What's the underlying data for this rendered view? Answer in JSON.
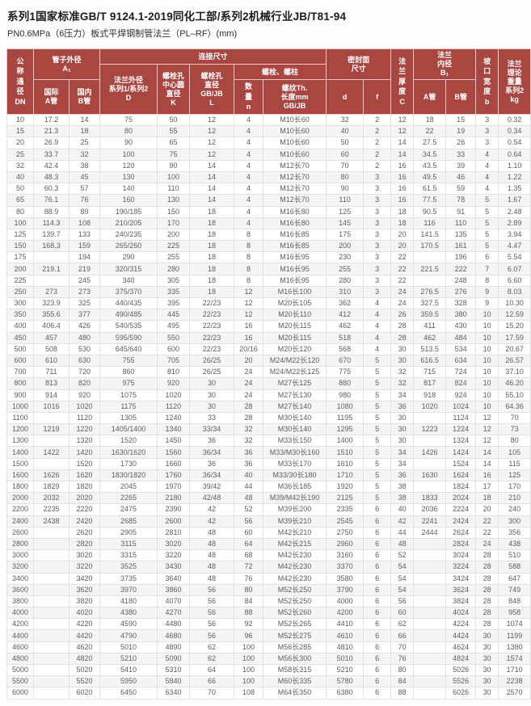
{
  "title": "系列1国家标准GB/T 9124.1-2019同化工部/系列2机械行业JB/T81-94",
  "subtitle": "PN0.6MPa（6压力）板式平焊钢制管法兰（PL–RF）(mm)",
  "colors": {
    "header_bg": "#a84642",
    "header_text": "#ffffff",
    "body_text": "#5d5d5d"
  },
  "table": {
    "header": {
      "dn": "公\n称\n通\n径\nDN",
      "pipe_od": "管子外径\nA₁",
      "intl_a": "国际\nA管",
      "domestic_b": "国内\nB管",
      "connect": "连接尺寸",
      "flange_od": "法兰外径\n系列1/系列2\nD",
      "bolt_circle": "螺栓孔\n中心圆\n直径\nK",
      "bolt_hole": "螺栓孔\n直径\nGB/JB\nL",
      "bolts_group": "螺栓、螺柱",
      "bolt_qty": "数\n量\nn",
      "bolt_thread": "螺纹Th.\n长度mm\nGB/JB",
      "seal_face": "密封面\n尺寸",
      "seal_d": "d",
      "seal_f": "f",
      "thickness": "法\n兰\n厚\n度\nC",
      "bore": "法兰\n内径\nB₁",
      "bore_a": "A管",
      "bore_b": "B管",
      "groove": "坡\n口\n宽\n度\nb",
      "weight": "法兰\n理论\n重量\n系列2\nkg"
    },
    "rows": [
      [
        "10",
        "17.2",
        "14",
        "75",
        "50",
        "12",
        "4",
        "M10长60",
        "32",
        "2",
        "12",
        "18",
        "15",
        "3",
        "0.32"
      ],
      [
        "15",
        "21.3",
        "18",
        "80",
        "55",
        "12",
        "4",
        "M10长60",
        "40",
        "2",
        "12",
        "22",
        "19",
        "3",
        "0.34"
      ],
      [
        "20",
        "26.9",
        "25",
        "90",
        "65",
        "12",
        "4",
        "M10长60",
        "50",
        "2",
        "14",
        "27.5",
        "26",
        "3",
        "0.54"
      ],
      [
        "25",
        "33.7",
        "32",
        "100",
        "75",
        "12",
        "4",
        "M10长60",
        "60",
        "2",
        "14",
        "34.5",
        "33",
        "4",
        "0.64"
      ],
      [
        "32",
        "42.4",
        "38",
        "120",
        "90",
        "14",
        "4",
        "M12长70",
        "70",
        "2",
        "16",
        "43.5",
        "39",
        "4",
        "1.10"
      ],
      [
        "40",
        "48.3",
        "45",
        "130",
        "100",
        "14",
        "4",
        "M12长70",
        "80",
        "3",
        "16",
        "49.5",
        "46",
        "4",
        "1.22"
      ],
      [
        "50",
        "60.3",
        "57",
        "140",
        "110",
        "14",
        "4",
        "M12长70",
        "90",
        "3",
        "16",
        "61.5",
        "59",
        "4",
        "1.35"
      ],
      [
        "65",
        "76.1",
        "76",
        "160",
        "130",
        "14",
        "4",
        "M12长70",
        "110",
        "3",
        "16",
        "77.5",
        "78",
        "5",
        "1.67"
      ],
      [
        "80",
        "88.9",
        "89",
        "190/185",
        "150",
        "18",
        "4",
        "M16长80",
        "125",
        "3",
        "18",
        "90.5",
        "91",
        "5",
        "2.48"
      ],
      [
        "100",
        "114.3",
        "108",
        "210/205",
        "170",
        "18",
        "4",
        "M16长80",
        "145",
        "3",
        "18",
        "116",
        "110",
        "5",
        "2.89"
      ],
      [
        "125",
        "139.7",
        "133",
        "240/235",
        "200",
        "18",
        "8",
        "M16长85",
        "175",
        "3",
        "20",
        "141.5",
        "135",
        "5",
        "3.94"
      ],
      [
        "150",
        "168.3",
        "159",
        "265/260",
        "225",
        "18",
        "8",
        "M16长85",
        "200",
        "3",
        "20",
        "170.5",
        "161",
        "5",
        "4.47"
      ],
      [
        "175",
        "",
        "194",
        "290",
        "255",
        "18",
        "8",
        "M16长95",
        "230",
        "3",
        "22",
        "",
        "196",
        "6",
        "5.54"
      ],
      [
        "200",
        "219.1",
        "219",
        "320/315",
        "280",
        "18",
        "8",
        "M16长95",
        "255",
        "3",
        "22",
        "221.5",
        "222",
        "7",
        "6.07"
      ],
      [
        "225",
        "",
        "245",
        "340",
        "305",
        "18",
        "8",
        "M16长95",
        "280",
        "3",
        "22",
        "",
        "248",
        "8",
        "6.60"
      ],
      [
        "250",
        "273",
        "273",
        "375/370",
        "335",
        "18",
        "12",
        "M16长100",
        "310",
        "3",
        "24",
        "276.5",
        "276",
        "9",
        "8.03"
      ],
      [
        "300",
        "323.9",
        "325",
        "440/435",
        "395",
        "22/23",
        "12",
        "M20长105",
        "362",
        "4",
        "24",
        "327.5",
        "328",
        "9",
        "10.30"
      ],
      [
        "350",
        "355.6",
        "377",
        "490/485",
        "445",
        "22/23",
        "12",
        "M20长110",
        "412",
        "4",
        "26",
        "359.5",
        "380",
        "10",
        "12.59"
      ],
      [
        "400",
        "406.4",
        "426",
        "540/535",
        "495",
        "22/23",
        "16",
        "M20长115",
        "462",
        "4",
        "28",
        "411",
        "430",
        "10",
        "15.20"
      ],
      [
        "450",
        "457",
        "480",
        "595/590",
        "550",
        "22/23",
        "16",
        "M20长115",
        "518",
        "4",
        "28",
        "462",
        "484",
        "10",
        "17.59"
      ],
      [
        "500",
        "508",
        "530",
        "645/640",
        "600",
        "22/23",
        "20/16",
        "M20长120",
        "568",
        "4",
        "30",
        "513.5",
        "534",
        "10",
        "20.67"
      ],
      [
        "600",
        "610",
        "630",
        "755",
        "705",
        "26/25",
        "20",
        "M24/M22长120",
        "670",
        "5",
        "30",
        "616.5",
        "634",
        "10",
        "26.57"
      ],
      [
        "700",
        "711",
        "720",
        "860",
        "810",
        "26/25",
        "24",
        "M24/M22长125",
        "775",
        "5",
        "32",
        "715",
        "724",
        "10",
        "37.10"
      ],
      [
        "800",
        "813",
        "820",
        "975",
        "920",
        "30",
        "24",
        "M27长125",
        "880",
        "5",
        "32",
        "817",
        "824",
        "10",
        "46.20"
      ],
      [
        "900",
        "914",
        "920",
        "1075",
        "1020",
        "30",
        "24",
        "M27长130",
        "980",
        "5",
        "34",
        "918",
        "924",
        "10",
        "55.10"
      ],
      [
        "1000",
        "1016",
        "1020",
        "1175",
        "1120",
        "30",
        "28",
        "M27长140",
        "1080",
        "5",
        "36",
        "1020",
        "1024",
        "10",
        "64.36"
      ],
      [
        "1100",
        "",
        "1120",
        "1305",
        "1240",
        "33",
        "28",
        "M30长140",
        "1195",
        "5",
        "30",
        "",
        "1124",
        "12",
        "70"
      ],
      [
        "1200",
        "1219",
        "1220",
        "1405/1400",
        "1340",
        "33/34",
        "32",
        "M30长140",
        "1295",
        "5",
        "30",
        "1223",
        "1224",
        "12",
        "73"
      ],
      [
        "1300",
        "",
        "1320",
        "1520",
        "1450",
        "36",
        "32",
        "M33长150",
        "1400",
        "5",
        "30",
        "",
        "1324",
        "12",
        "80"
      ],
      [
        "1400",
        "1422",
        "1420",
        "1630/1620",
        "1560",
        "36/34",
        "36",
        "M33/M30长160",
        "1510",
        "5",
        "34",
        "1426",
        "1424",
        "14",
        "105"
      ],
      [
        "1500",
        "",
        "1520",
        "1730",
        "1660",
        "36",
        "36",
        "M33长170",
        "1610",
        "5",
        "34",
        "",
        "1524",
        "14",
        "115"
      ],
      [
        "1600",
        "1626",
        "1620",
        "1830/1820",
        "1760",
        "36/34",
        "40",
        "M33/30长180",
        "1710",
        "5",
        "36",
        "1630",
        "1624",
        "16",
        "125"
      ],
      [
        "1800",
        "1829",
        "1820",
        "2045",
        "1970",
        "39/42",
        "44",
        "M36长185",
        "1920",
        "5",
        "38",
        "",
        "1824",
        "17",
        "170"
      ],
      [
        "2000",
        "2032",
        "2020",
        "2265",
        "2180",
        "42/48",
        "48",
        "M39/M42长190",
        "2125",
        "5",
        "38",
        "1833",
        "2024",
        "18",
        "210"
      ],
      [
        "2200",
        "2235",
        "2220",
        "2475",
        "2390",
        "42",
        "52",
        "M39长200",
        "2335",
        "6",
        "40",
        "2036",
        "2224",
        "20",
        "240"
      ],
      [
        "2400",
        "2438",
        "2420",
        "2685",
        "2600",
        "42",
        "56",
        "M39长210",
        "2545",
        "6",
        "42",
        "2241",
        "2424",
        "22",
        "300"
      ],
      [
        "2600",
        "",
        "2620",
        "2905",
        "2810",
        "48",
        "60",
        "M42长210",
        "2750",
        "6",
        "44",
        "2444",
        "2624",
        "22",
        "356"
      ],
      [
        "2800",
        "",
        "2820",
        "3115",
        "3020",
        "48",
        "64",
        "M42长215",
        "2960",
        "6",
        "48",
        "",
        "2824",
        "24",
        "438"
      ],
      [
        "3000",
        "",
        "3020",
        "3315",
        "3220",
        "48",
        "68",
        "M42长230",
        "3160",
        "6",
        "52",
        "",
        "3024",
        "28",
        "510"
      ],
      [
        "3200",
        "",
        "3220",
        "3525",
        "3430",
        "48",
        "72",
        "M42长230",
        "3370",
        "6",
        "54",
        "",
        "3224",
        "28",
        "588"
      ],
      [
        "3400",
        "",
        "3420",
        "3735",
        "3640",
        "48",
        "76",
        "M42长230",
        "3580",
        "6",
        "54",
        "",
        "3424",
        "28",
        "647"
      ],
      [
        "3600",
        "",
        "3620",
        "3970",
        "3860",
        "56",
        "80",
        "M52长250",
        "3790",
        "6",
        "54",
        "",
        "3624",
        "28",
        "749"
      ],
      [
        "3800",
        "",
        "3820",
        "4180",
        "4070",
        "56",
        "84",
        "M52长250",
        "4000",
        "6",
        "56",
        "",
        "3824",
        "28",
        "848"
      ],
      [
        "4000",
        "",
        "4020",
        "4380",
        "4270",
        "56",
        "88",
        "M52长260",
        "4200",
        "6",
        "60",
        "",
        "4024",
        "28",
        "958"
      ],
      [
        "4200",
        "",
        "4220",
        "4590",
        "4480",
        "56",
        "92",
        "M52长265",
        "4410",
        "6",
        "62",
        "",
        "4224",
        "28",
        "1074"
      ],
      [
        "4400",
        "",
        "4420",
        "4790",
        "4680",
        "56",
        "96",
        "M52长275",
        "4610",
        "6",
        "66",
        "",
        "4424",
        "30",
        "1199"
      ],
      [
        "4600",
        "",
        "4620",
        "5010",
        "4890",
        "62",
        "100",
        "M56长285",
        "4810",
        "6",
        "70",
        "",
        "4624",
        "30",
        "1380"
      ],
      [
        "4800",
        "",
        "4820",
        "5210",
        "5090",
        "62",
        "100",
        "M56长300",
        "5010",
        "6",
        "76",
        "",
        "4824",
        "30",
        "1574"
      ],
      [
        "5000",
        "",
        "5020",
        "5410",
        "5310",
        "64",
        "100",
        "M58长315",
        "5210",
        "6",
        "80",
        "",
        "5026",
        "30",
        "1710"
      ],
      [
        "5500",
        "",
        "5520",
        "5950",
        "5840",
        "66",
        "100",
        "M60长335",
        "5780",
        "6",
        "84",
        "",
        "5526",
        "30",
        "2238"
      ],
      [
        "6000",
        "",
        "6020",
        "6450",
        "6340",
        "70",
        "108",
        "M64长350",
        "6380",
        "6",
        "88",
        "",
        "6026",
        "30",
        "2570"
      ]
    ]
  }
}
